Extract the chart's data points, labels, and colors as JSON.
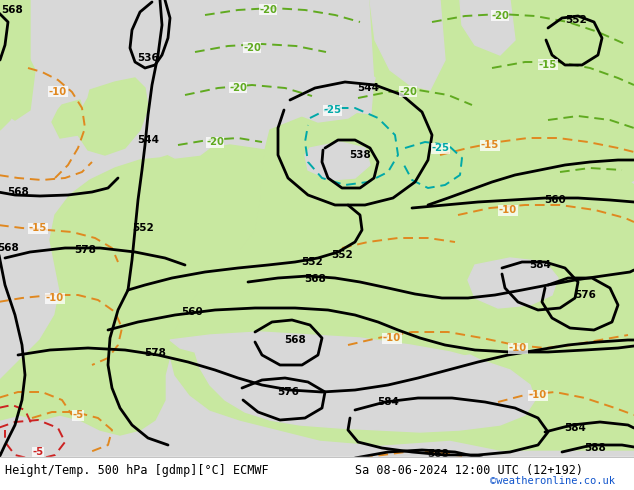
{
  "title_left": "Height/Temp. 500 hPa [gdmp][°C] ECMWF",
  "title_right": "Sa 08-06-2024 12:00 UTC (12+192)",
  "credit": "©weatheronline.co.uk",
  "sea_color": "#d8d8d8",
  "land_color": "#c8e8a0",
  "z500_color": "#000000",
  "temp_orange_color": "#e08820",
  "temp_cyan_color": "#00a8a8",
  "temp_red_color": "#cc2222",
  "temp_green_color": "#60aa20",
  "label_fontsize": 7.5,
  "title_fontsize": 8.5,
  "credit_fontsize": 7.5,
  "figsize": [
    6.34,
    4.9
  ],
  "dpi": 100
}
